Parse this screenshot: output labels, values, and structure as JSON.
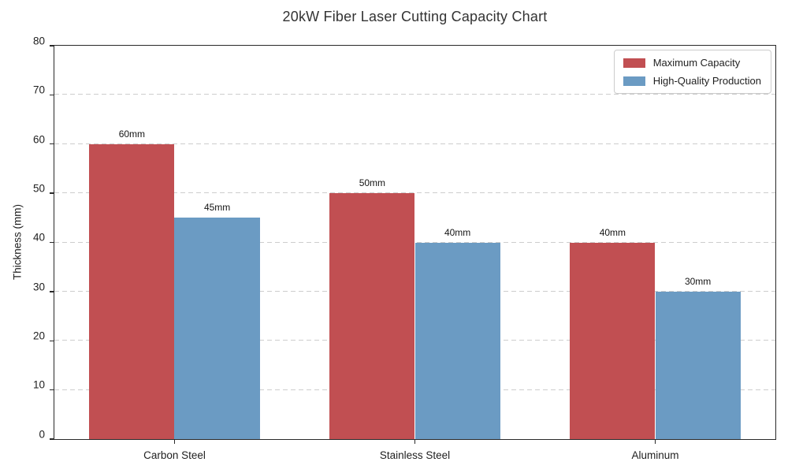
{
  "chart_data": {
    "type": "bar",
    "title": "20kW Fiber Laser Cutting Capacity Chart",
    "ylabel": "Thickness (mm)",
    "xlabel": "",
    "categories": [
      "Carbon Steel",
      "Stainless Steel",
      "Aluminum"
    ],
    "series": [
      {
        "name": "Maximum Capacity",
        "color": "#c14f52",
        "values": [
          60,
          50,
          40
        ],
        "data_labels": [
          "60mm",
          "50mm",
          "40mm"
        ]
      },
      {
        "name": "High-Quality Production",
        "color": "#6b9bc3",
        "values": [
          45,
          40,
          30
        ],
        "data_labels": [
          "45mm",
          "40mm",
          "30mm"
        ]
      }
    ],
    "ylim": [
      0,
      80
    ],
    "yticks": [
      0,
      10,
      20,
      30,
      40,
      50,
      60,
      70,
      80
    ],
    "grid": "horizontal dashed",
    "legend_position": "upper right",
    "unit": "mm"
  }
}
